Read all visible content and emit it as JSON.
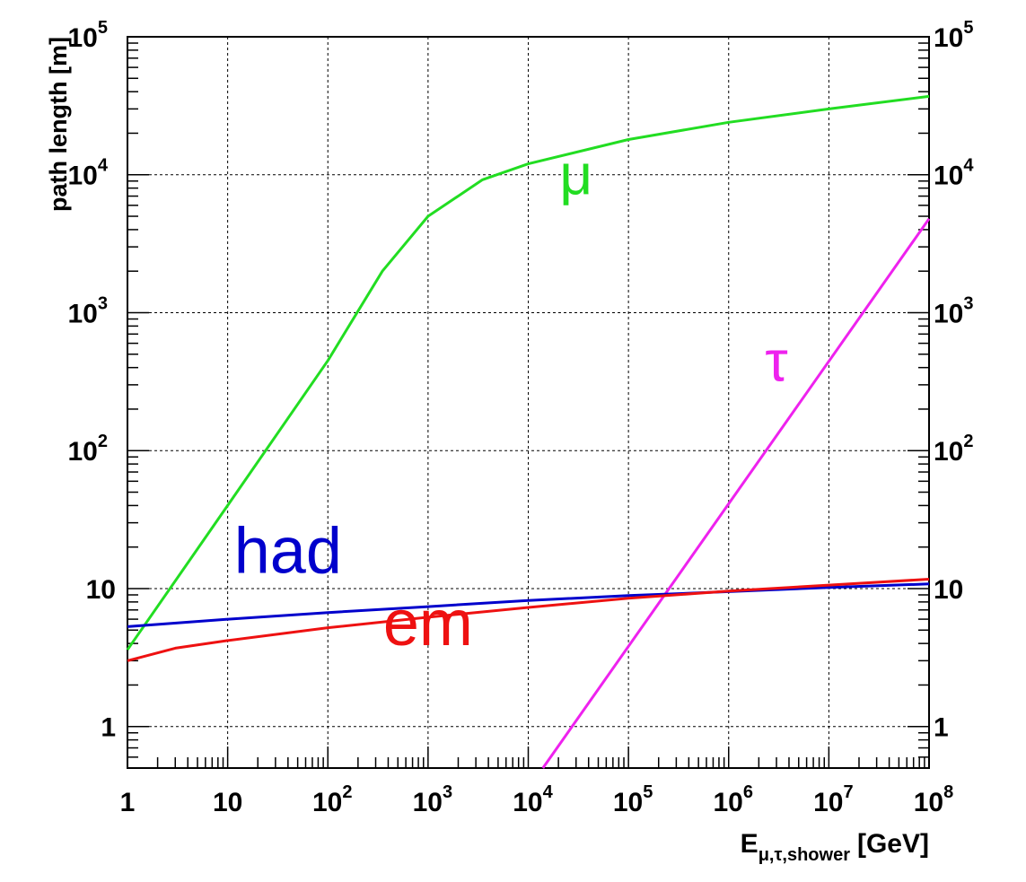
{
  "chart_data": {
    "type": "line",
    "x_scale": "log",
    "y_scale": "log",
    "xlim": [
      1,
      100000000
    ],
    "ylim": [
      0.5,
      100000
    ],
    "grid": true,
    "legend": "none",
    "xlabel": {
      "main": "E",
      "subscript": "μ,τ,shower",
      "unit": "[GeV]"
    },
    "ylabel": "path length [m]",
    "x_ticks": [
      {
        "value": 1,
        "base": "1",
        "exp": ""
      },
      {
        "value": 10,
        "base": "10",
        "exp": ""
      },
      {
        "value": 100,
        "base": "10",
        "exp": "2"
      },
      {
        "value": 1000,
        "base": "10",
        "exp": "3"
      },
      {
        "value": 10000,
        "base": "10",
        "exp": "4"
      },
      {
        "value": 100000,
        "base": "10",
        "exp": "5"
      },
      {
        "value": 1000000,
        "base": "10",
        "exp": "6"
      },
      {
        "value": 10000000,
        "base": "10",
        "exp": "7"
      },
      {
        "value": 100000000,
        "base": "10",
        "exp": "8"
      }
    ],
    "y_ticks": [
      {
        "value": 1,
        "base": "1",
        "exp": ""
      },
      {
        "value": 10,
        "base": "10",
        "exp": ""
      },
      {
        "value": 100,
        "base": "10",
        "exp": "2"
      },
      {
        "value": 1000,
        "base": "10",
        "exp": "3"
      },
      {
        "value": 10000,
        "base": "10",
        "exp": "4"
      },
      {
        "value": 100000,
        "base": "10",
        "exp": "5"
      }
    ],
    "series": [
      {
        "name": "μ",
        "color": "#22dd22",
        "x": [
          1,
          10,
          100,
          350,
          1000,
          3500,
          10000,
          100000,
          1000000,
          10000000,
          100000000
        ],
        "y": [
          3.6,
          40,
          450,
          2000,
          5000,
          9200,
          12000,
          18000,
          24000,
          30000,
          37000
        ]
      },
      {
        "name": "τ",
        "color": "#ee22ee",
        "x": [
          14000,
          100000000
        ],
        "y": [
          0.5,
          4800
        ]
      },
      {
        "name": "had",
        "color": "#0000cc",
        "x": [
          1,
          10,
          100,
          1000,
          10000,
          100000,
          1000000,
          10000000,
          100000000
        ],
        "y": [
          5.3,
          6.0,
          6.7,
          7.4,
          8.2,
          8.9,
          9.5,
          10.2,
          10.8
        ]
      },
      {
        "name": "em",
        "color": "#ee1111",
        "x": [
          1,
          3,
          10,
          100,
          1000,
          10000,
          100000,
          1000000,
          10000000,
          100000000
        ],
        "y": [
          3.0,
          3.7,
          4.2,
          5.2,
          6.2,
          7.3,
          8.5,
          9.6,
          10.6,
          11.7
        ]
      }
    ],
    "annotations": [
      {
        "text": "μ",
        "series": "μ",
        "x": 30000,
        "y": 7200
      },
      {
        "text": "τ",
        "series": "τ",
        "x": 3000000,
        "y": 320
      },
      {
        "text": "had",
        "series": "had",
        "x": 40,
        "y": 13
      },
      {
        "text": "em",
        "series": "em",
        "x": 1000,
        "y": 3.9
      }
    ]
  }
}
